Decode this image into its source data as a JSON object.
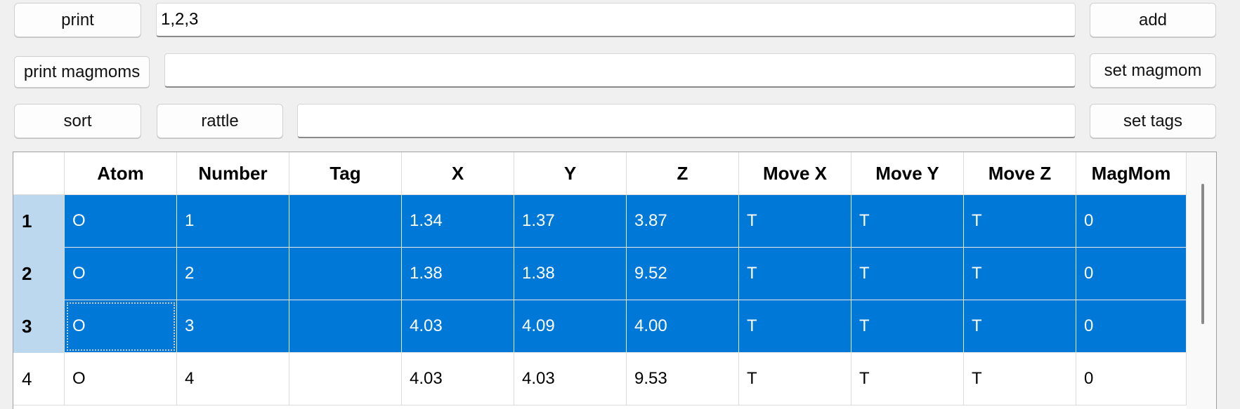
{
  "toolbar": {
    "print_label": "print",
    "indices_value": "1,2,3",
    "add_label": "add",
    "print_magmoms_label": "print magmoms",
    "magmom_value": "",
    "set_magmom_label": "set magmom",
    "sort_label": "sort",
    "rattle_label": "rattle",
    "tags_value": "",
    "set_tags_label": "set tags"
  },
  "table": {
    "columns": [
      "Atom",
      "Number",
      "Tag",
      "X",
      "Y",
      "Z",
      "Move X",
      "Move Y",
      "Move Z",
      "MagMom"
    ],
    "rows": [
      {
        "index": "1",
        "selected": true,
        "cells": [
          "O",
          "1",
          "",
          "1.34",
          "1.37",
          "3.87",
          "T",
          "T",
          "T",
          "0"
        ]
      },
      {
        "index": "2",
        "selected": true,
        "cells": [
          "O",
          "2",
          "",
          "1.38",
          "1.38",
          "9.52",
          "T",
          "T",
          "T",
          "0"
        ]
      },
      {
        "index": "3",
        "selected": true,
        "cells": [
          "O",
          "3",
          "",
          "4.03",
          "4.09",
          "4.00",
          "T",
          "T",
          "T",
          "0"
        ]
      },
      {
        "index": "4",
        "selected": false,
        "cells": [
          "O",
          "4",
          "",
          "4.03",
          "4.03",
          "9.53",
          "T",
          "T",
          "T",
          "0"
        ]
      }
    ]
  },
  "colors": {
    "selection": "#0078d7",
    "row_header_selected": "#bcd8ef"
  }
}
